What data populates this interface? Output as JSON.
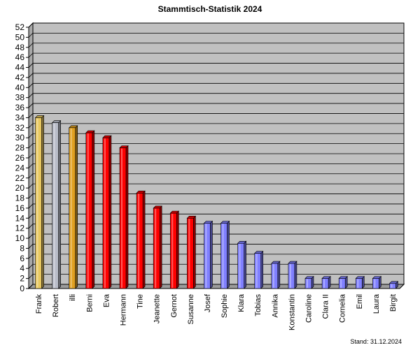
{
  "chart_data": {
    "type": "bar",
    "title": "Stammtisch-Statistik  2024",
    "footnote": "Stand: 31.12.2024",
    "categories": [
      "Frank",
      "Robert",
      "illi",
      "Berni",
      "Eva",
      "Hermann",
      "Tine",
      "Jeanette",
      "Gernot",
      "Susanne",
      "Josef",
      "Sophie",
      "Klara",
      "Tobias",
      "Annika",
      "Konstantin",
      "Caroline",
      "Clara II",
      "Cornelia",
      "Emil",
      "Laura",
      "Birgit"
    ],
    "values": [
      34,
      33,
      32,
      31,
      30,
      28,
      19,
      16,
      15,
      14,
      13,
      13,
      9,
      7,
      5,
      5,
      2,
      2,
      2,
      2,
      2,
      1
    ],
    "bar_colors": [
      "#e8c860",
      "#b8bcc8",
      "#e0a020",
      "#ff0000",
      "#ff0000",
      "#ff0000",
      "#ff0000",
      "#ff0000",
      "#ff0000",
      "#ff0000",
      "#8080ff",
      "#8080ff",
      "#8080ff",
      "#8080ff",
      "#8080ff",
      "#8080ff",
      "#8080ff",
      "#8080ff",
      "#8080ff",
      "#8080ff",
      "#8080ff",
      "#8080ff"
    ],
    "ylim": [
      0,
      52
    ],
    "ytick_step": 2,
    "grid": true,
    "plot_background": "#c0c0c0"
  }
}
